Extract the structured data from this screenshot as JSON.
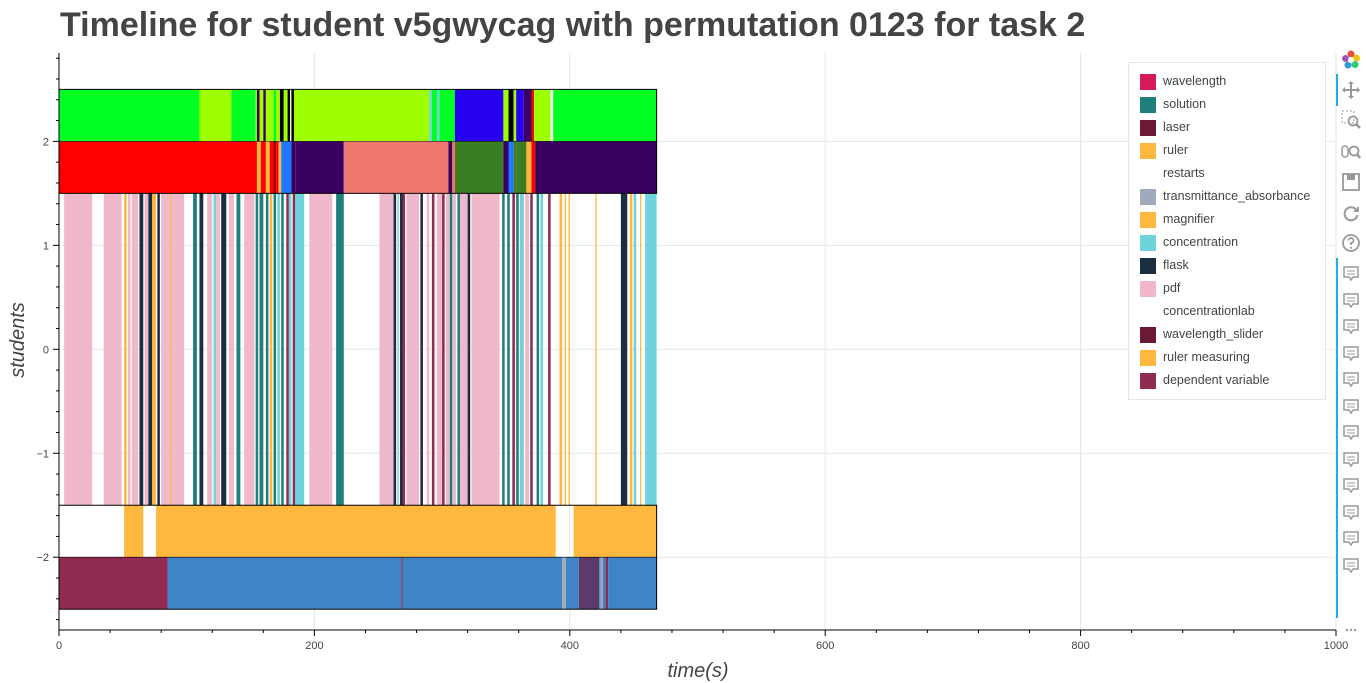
{
  "chart_data": {
    "type": "timeline",
    "title": "Timeline for student v5gwycag with permutation 0123 for task 2",
    "xlabel": "time(s)",
    "ylabel": "students",
    "xlim": [
      0,
      1000
    ],
    "ylim": [
      -2.7,
      2.85
    ],
    "x_ticks": [
      0,
      200,
      400,
      600,
      800,
      1000
    ],
    "y_ticks": [
      -2,
      -1,
      0,
      1,
      2
    ],
    "y_tick_labels": [
      "−2",
      "−1",
      "0",
      "1",
      "2"
    ],
    "grid": true,
    "legend_position": "top-right",
    "legend": [
      {
        "label": "wavelength",
        "color": "#d6195b"
      },
      {
        "label": "solution",
        "color": "#217f7b"
      },
      {
        "label": "laser",
        "color": "#6a1a33"
      },
      {
        "label": "ruler",
        "color": "#ffb83f"
      },
      {
        "label": "restarts",
        "color": "#ffffff"
      },
      {
        "label": "transmittance_absorbance",
        "color": "#9fabbd"
      },
      {
        "label": "magnifier",
        "color": "#ffb83f"
      },
      {
        "label": "concentration",
        "color": "#6ed3db"
      },
      {
        "label": "flask",
        "color": "#1b2e42"
      },
      {
        "label": "pdf",
        "color": "#f0b9cb"
      },
      {
        "label": "concentrationlab",
        "color": "#ffffff"
      },
      {
        "label": "wavelength_slider",
        "color": "#6a1a33"
      },
      {
        "label": "ruler measuring",
        "color": "#ffb83f"
      },
      {
        "label": "dependent variable",
        "color": "#922b52"
      }
    ],
    "rows": [
      {
        "y0": 2,
        "y1": 2.5,
        "segments": [
          [
            0,
            110,
            "#00ff22"
          ],
          [
            110,
            135,
            "#9eff00"
          ],
          [
            135,
            154,
            "#00ff22"
          ],
          [
            154,
            155,
            "#9eff00"
          ],
          [
            155,
            157,
            "#3a0060"
          ],
          [
            157,
            160,
            "#9eff00"
          ],
          [
            160,
            162,
            "#3a0060"
          ],
          [
            162,
            168,
            "#9eff00"
          ],
          [
            168,
            170,
            "#00ff22"
          ],
          [
            170,
            173,
            "#9eff00"
          ],
          [
            173,
            176,
            "#000000"
          ],
          [
            176,
            179,
            "#9eff00"
          ],
          [
            179,
            181,
            "#000000"
          ],
          [
            181,
            182,
            "#ffffff"
          ],
          [
            182,
            184,
            "#000000"
          ],
          [
            184,
            186,
            "#9eff00"
          ],
          [
            186,
            290,
            "#9eff00"
          ],
          [
            290,
            292,
            "#6ed3db"
          ],
          [
            292,
            296,
            "#00ff22"
          ],
          [
            296,
            298,
            "#6ed3db"
          ],
          [
            298,
            310,
            "#00ff22"
          ],
          [
            310,
            348,
            "#2600ee"
          ],
          [
            348,
            352,
            "#9eff00"
          ],
          [
            352,
            356,
            "#000000"
          ],
          [
            356,
            358,
            "#9eff00"
          ],
          [
            358,
            364,
            "#2600ee"
          ],
          [
            364,
            370,
            "#3a0060"
          ],
          [
            370,
            372,
            "#ff0000"
          ],
          [
            372,
            385,
            "#9eff00"
          ],
          [
            385,
            387,
            "#ffffff"
          ],
          [
            387,
            390,
            "#00ff22"
          ],
          [
            390,
            468,
            "#00ff22"
          ]
        ]
      },
      {
        "y0": 1.5,
        "y1": 2,
        "segments": [
          [
            0,
            110,
            "#ff0000"
          ],
          [
            110,
            155,
            "#ff0000"
          ],
          [
            155,
            158,
            "#ffb83f"
          ],
          [
            158,
            162,
            "#ff0000"
          ],
          [
            162,
            165,
            "#ffb83f"
          ],
          [
            165,
            168,
            "#ff0000"
          ],
          [
            168,
            170,
            "#9e0000"
          ],
          [
            170,
            172,
            "#ff0000"
          ],
          [
            172,
            174,
            "#ffb83f"
          ],
          [
            174,
            182,
            "#1f78ff"
          ],
          [
            182,
            185,
            "#3a0060"
          ],
          [
            185,
            223,
            "#3a0060"
          ],
          [
            223,
            305,
            "#ee7770"
          ],
          [
            305,
            308,
            "#3a0060"
          ],
          [
            308,
            310,
            "#ee7770"
          ],
          [
            310,
            348,
            "#3a7d23"
          ],
          [
            348,
            352,
            "#3a0060"
          ],
          [
            352,
            356,
            "#1f78ff"
          ],
          [
            356,
            358,
            "#3a7d23"
          ],
          [
            358,
            366,
            "#3a7d23"
          ],
          [
            366,
            370,
            "#ffb83f"
          ],
          [
            370,
            373,
            "#ff0000"
          ],
          [
            373,
            468,
            "#3a0060"
          ]
        ]
      },
      {
        "y0": -1.5,
        "y1": 1.5,
        "segments": [
          [
            4,
            26,
            "#f0b9cb"
          ],
          [
            35,
            49,
            "#f0b9cb"
          ],
          [
            51,
            53,
            "#ffb83f"
          ],
          [
            54,
            56,
            "#f0b9cb"
          ],
          [
            57,
            62,
            "#f0b9cb"
          ],
          [
            63,
            66,
            "#1b2e42"
          ],
          [
            67,
            70,
            "#f0b9cb"
          ],
          [
            70,
            73,
            "#1b2e42"
          ],
          [
            73,
            76,
            "#ffb83f"
          ],
          [
            77,
            79,
            "#1b2e42"
          ],
          [
            80,
            87,
            "#f0b9cb"
          ],
          [
            87,
            89,
            "#ffb83f"
          ],
          [
            88,
            98,
            "#f0b9cb"
          ],
          [
            105,
            108,
            "#217f7b"
          ],
          [
            110,
            113,
            "#1b2e42"
          ],
          [
            116,
            120,
            "#f0b9cb"
          ],
          [
            121,
            123,
            "#6ed3db"
          ],
          [
            123,
            126,
            "#f0b9cb"
          ],
          [
            127,
            131,
            "#1b2e42"
          ],
          [
            133,
            137,
            "#f0b9cb"
          ],
          [
            139,
            142,
            "#217f7b"
          ],
          [
            145,
            148,
            "#f0b9cb"
          ],
          [
            148,
            153,
            "#f0b9cb"
          ],
          [
            154,
            156,
            "#217f7b"
          ],
          [
            157,
            160,
            "#217f7b"
          ],
          [
            162,
            164,
            "#217f7b"
          ],
          [
            165,
            167,
            "#ffb83f"
          ],
          [
            168,
            170,
            "#217f7b"
          ],
          [
            171,
            173,
            "#6ed3db"
          ],
          [
            174,
            176,
            "#217f7b"
          ],
          [
            178,
            180,
            "#922b52"
          ],
          [
            180,
            182,
            "#6ed3db"
          ],
          [
            183,
            185,
            "#922b52"
          ],
          [
            185,
            192,
            "#6ed3db"
          ],
          [
            196,
            214,
            "#f0b9cb"
          ],
          [
            217,
            223,
            "#217f7b"
          ],
          [
            251,
            262,
            "#f0b9cb"
          ],
          [
            262,
            264,
            "#1b2e42"
          ],
          [
            265,
            266,
            "#6ed3db"
          ],
          [
            267,
            269,
            "#1b2e42"
          ],
          [
            269,
            271,
            "#922b52"
          ],
          [
            272,
            282,
            "#f0b9cb"
          ],
          [
            283,
            285,
            "#1b2e42"
          ],
          [
            288,
            290,
            "#f0b9cb"
          ],
          [
            292,
            294,
            "#922b52"
          ],
          [
            296,
            300,
            "#f0b9cb"
          ],
          [
            300,
            302,
            "#922b52"
          ],
          [
            303,
            306,
            "#f0b9cb"
          ],
          [
            306,
            308,
            "#217f7b"
          ],
          [
            308,
            311,
            "#f0b9cb"
          ],
          [
            312,
            314,
            "#217f7b"
          ],
          [
            314,
            320,
            "#f0b9cb"
          ],
          [
            320,
            322,
            "#1b2e42"
          ],
          [
            323,
            345,
            "#f0b9cb"
          ],
          [
            347,
            349,
            "#217f7b"
          ],
          [
            351,
            353,
            "#217f7b"
          ],
          [
            355,
            357,
            "#922b52"
          ],
          [
            358,
            360,
            "#217f7b"
          ],
          [
            361,
            364,
            "#6ed3db"
          ],
          [
            365,
            368,
            "#f0b9cb"
          ],
          [
            369,
            371,
            "#922b52"
          ],
          [
            374,
            376,
            "#217f7b"
          ],
          [
            377,
            379,
            "#6ed3db"
          ],
          [
            383,
            385,
            "#922b52"
          ],
          [
            392,
            394,
            "#ffb83f"
          ],
          [
            396,
            397,
            "#ffb83f"
          ],
          [
            399,
            400,
            "#ffb83f"
          ],
          [
            420,
            421,
            "#ffb83f"
          ],
          [
            440,
            445,
            "#1b2e42"
          ],
          [
            447,
            449,
            "#ffb83f"
          ],
          [
            450,
            452,
            "#6ed3db"
          ],
          [
            455,
            456,
            "#ffb83f"
          ],
          [
            459,
            468,
            "#6ed3db"
          ]
        ]
      },
      {
        "y0": -2,
        "y1": -1.5,
        "segments": [
          [
            51,
            66,
            "#ffb83f"
          ],
          [
            76,
            389,
            "#ffb83f"
          ],
          [
            403,
            468,
            "#ffb83f"
          ]
        ]
      },
      {
        "y0": -2.5,
        "y1": -2,
        "segments": [
          [
            0,
            85,
            "#922b52"
          ],
          [
            85,
            268,
            "#3f84c6"
          ],
          [
            268,
            269,
            "#922b52"
          ],
          [
            269,
            394,
            "#3f84c6"
          ],
          [
            394,
            397,
            "#9fabbd"
          ],
          [
            397,
            407,
            "#3f84c6"
          ],
          [
            407,
            423,
            "#5e3a6b"
          ],
          [
            423,
            424,
            "#3f84c6"
          ],
          [
            424,
            426,
            "#9fabbd"
          ],
          [
            426,
            428,
            "#3f84c6"
          ],
          [
            428,
            430,
            "#922b52"
          ],
          [
            430,
            468,
            "#3f84c6"
          ]
        ]
      }
    ],
    "bounding_boxes": [
      {
        "x0": 0,
        "x1": 468,
        "y0": 1.5,
        "y1": 2.5
      },
      {
        "x0": 0,
        "x1": 468,
        "y0": -2.5,
        "y1": -1.5
      }
    ]
  },
  "toolbar": [
    {
      "name": "bokeh-logo-icon",
      "interactable": false
    },
    {
      "name": "pan-icon",
      "interactable": true
    },
    {
      "name": "box-zoom-icon",
      "interactable": true
    },
    {
      "name": "wheel-zoom-icon",
      "interactable": true
    },
    {
      "name": "save-icon",
      "interactable": true
    },
    {
      "name": "reset-icon",
      "interactable": true
    },
    {
      "name": "help-icon",
      "interactable": true
    },
    {
      "name": "hover-icon",
      "interactable": true
    },
    {
      "name": "more-icon",
      "interactable": true
    }
  ]
}
